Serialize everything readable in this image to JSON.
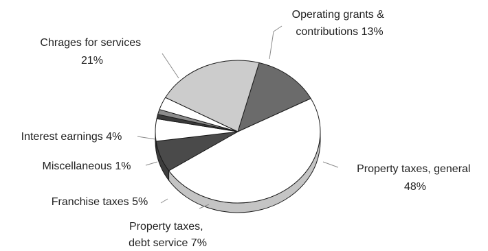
{
  "chart_data": {
    "type": "pie",
    "style": "3d",
    "slices": [
      {
        "name": "Operating grants & contributions",
        "label_lines": [
          "Operating grants &",
          "contributions 13%"
        ],
        "value": 13,
        "color": "#6b6b6b"
      },
      {
        "name": "Property taxes, general",
        "label_lines": [
          "Property taxes, general",
          "48%"
        ],
        "value": 48,
        "color": "#ffffff"
      },
      {
        "name": "Property taxes, debt service",
        "label_lines": [
          "Property taxes,",
          "debt service 7%"
        ],
        "value": 7,
        "color": "#4a4a4a"
      },
      {
        "name": "Franchise taxes",
        "label_lines": [
          "Franchise taxes 5%"
        ],
        "value": 5,
        "color": "#ffffff"
      },
      {
        "name": "Miscellaneous",
        "label_lines": [
          "Miscellaneous 1%"
        ],
        "value": 1,
        "color": "#3a3a3a"
      },
      {
        "name": "Interest earnings",
        "label_lines": [
          "Interest earnings 4%"
        ],
        "value": 4,
        "color": "#8c8c8c"
      },
      {
        "name": "Interest earnings (white band)",
        "label_lines": [],
        "value": 0,
        "color": "#ffffff"
      },
      {
        "name": "Chrages for services",
        "label_lines": [
          "Chrages for services",
          "21%"
        ],
        "value": 21,
        "color": "#cccccc"
      }
    ],
    "legend": "none"
  }
}
